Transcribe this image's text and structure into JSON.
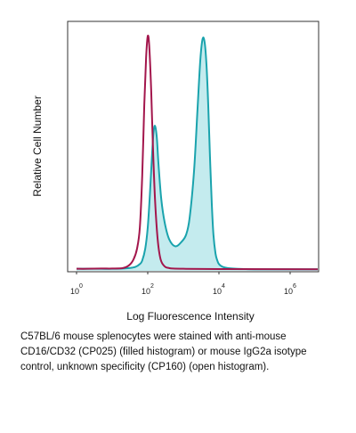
{
  "chart_data": {
    "type": "area",
    "xscale": "log",
    "xlim": [
      1,
      10000000
    ],
    "ylim": [
      0,
      1
    ],
    "xlabel": "Log Fluorescence Intensity",
    "ylabel": "Relative Cell Number",
    "xticks": [
      {
        "value": 1,
        "base": "10",
        "exp": "0"
      },
      {
        "value": 100,
        "base": "10",
        "exp": "2"
      },
      {
        "value": 10000,
        "base": "10",
        "exp": "4"
      },
      {
        "value": 1000000,
        "base": "10",
        "exp": "6"
      }
    ],
    "series": [
      {
        "name": "anti-mouse CD16/CD32 (CP025)",
        "style": "filled",
        "fill": "#c4ebee",
        "stroke": "#1aa3ad",
        "x": [
          1,
          2,
          5,
          10,
          20,
          30,
          45,
          60,
          70,
          85,
          100,
          115,
          130,
          145,
          160,
          180,
          200,
          240,
          300,
          400,
          600,
          900,
          1200,
          1500,
          2000,
          2500,
          3000,
          3500,
          4000,
          4500,
          5000,
          5600,
          6300,
          7000,
          8000,
          9000,
          10000,
          12000,
          15000,
          20000,
          30000,
          50000,
          100000,
          1000000,
          10000000
        ],
        "y": [
          0.005,
          0.005,
          0.005,
          0.005,
          0.006,
          0.008,
          0.013,
          0.025,
          0.04,
          0.09,
          0.18,
          0.32,
          0.47,
          0.58,
          0.61,
          0.56,
          0.45,
          0.3,
          0.2,
          0.13,
          0.1,
          0.12,
          0.15,
          0.22,
          0.42,
          0.68,
          0.89,
          0.98,
          0.96,
          0.86,
          0.7,
          0.48,
          0.28,
          0.15,
          0.07,
          0.04,
          0.025,
          0.015,
          0.01,
          0.007,
          0.005,
          0.004,
          0.003,
          0.003,
          0.003
        ]
      },
      {
        "name": "IgG2a isotype control (CP160)",
        "style": "open",
        "stroke": "#a3164c",
        "x": [
          1,
          2,
          5,
          10,
          20,
          30,
          40,
          50,
          60,
          70,
          80,
          90,
          100,
          110,
          125,
          140,
          160,
          190,
          230,
          300,
          400,
          500,
          1000,
          10000,
          10000000
        ],
        "y": [
          0.005,
          0.005,
          0.006,
          0.006,
          0.008,
          0.02,
          0.045,
          0.09,
          0.18,
          0.4,
          0.7,
          0.9,
          0.99,
          0.95,
          0.76,
          0.52,
          0.3,
          0.13,
          0.045,
          0.015,
          0.008,
          0.006,
          0.005,
          0.004,
          0.003
        ]
      }
    ]
  },
  "caption": "C57BL/6 mouse splenocytes were stained with anti-mouse CD16/CD32 (CP025) (filled histogram) or mouse IgG2a isotype control, unknown specificity (CP160) (open histogram)."
}
